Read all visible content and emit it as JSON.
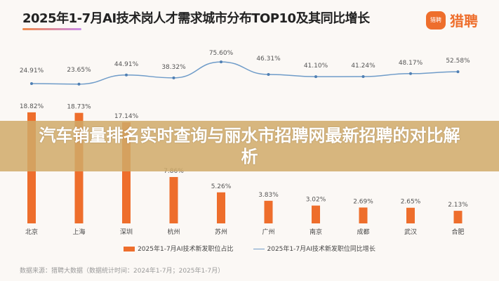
{
  "overlay_title": "汽车销量排名实时查询与丽水市招聘网最新招聘的对比解析",
  "logo": {
    "icon_text": "猎聘",
    "text": "猎聘",
    "color": "#ee6e2c"
  },
  "chart_data": {
    "type": "bar+line",
    "title": "2025年1-7月AI技术岗人才需求城市分布TOP10及其同比增长",
    "categories": [
      "北京",
      "上海",
      "深圳",
      "杭州",
      "苏州",
      "广州",
      "南京",
      "成都",
      "武汉",
      "合肥"
    ],
    "series": [
      {
        "name": "2025年1-7月AI技术新发职位占比",
        "type": "bar",
        "color": "#ee6e2c",
        "values": [
          18.82,
          18.73,
          17.14,
          7.86,
          5.26,
          3.83,
          3.02,
          2.69,
          2.65,
          2.13
        ],
        "labels": [
          "18.82%",
          "18.73%",
          "17.14%",
          "7.86%",
          "5.26%",
          "3.83%",
          "3.02%",
          "2.69%",
          "2.65%",
          "2.13%"
        ]
      },
      {
        "name": "2025年1-7月AI技术新发职位同比增长",
        "type": "line",
        "color": "#6f9cc9",
        "values": [
          24.91,
          23.65,
          44.91,
          38.32,
          75.6,
          46.31,
          41.1,
          41.24,
          48.17,
          52.58
        ],
        "labels": [
          "24.91%",
          "23.65%",
          "44.91%",
          "38.32%",
          "75.60%",
          "46.31%",
          "41.10%",
          "41.24%",
          "48.17%",
          "52.58%"
        ]
      }
    ],
    "legend_position": "bottom",
    "grid": false
  },
  "source": "数据来源：猎聘大数据（数据统计时间：2024年1-7月；2025年1-7月）"
}
